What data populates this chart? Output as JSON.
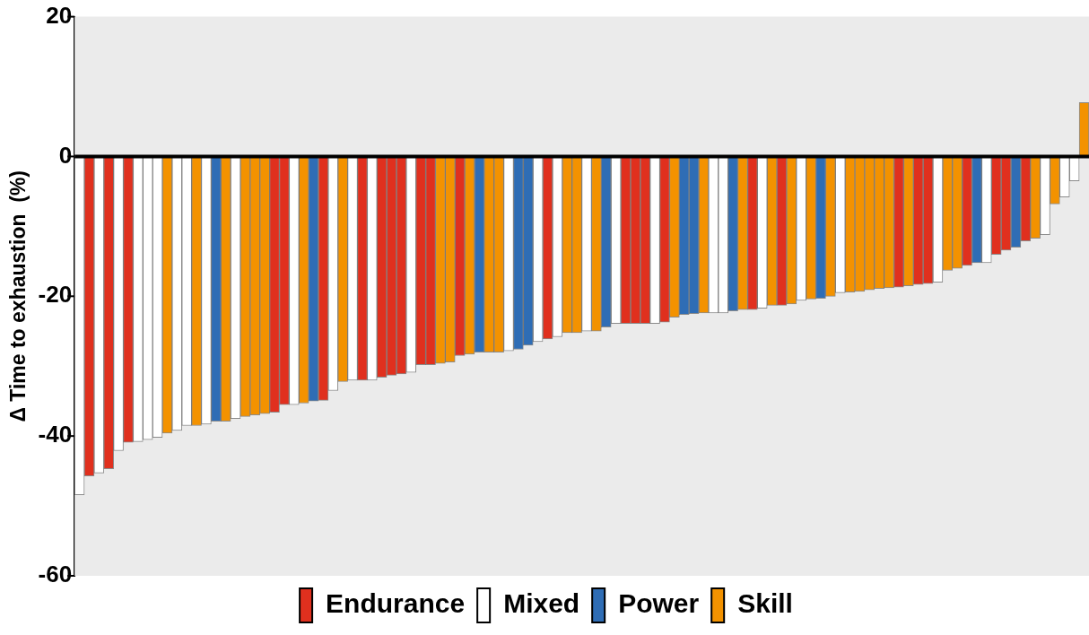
{
  "chart_data": {
    "type": "bar",
    "ylabel": "Δ Time to exhaustion  (%)",
    "categories": [
      null,
      null,
      null,
      null,
      null,
      null,
      null,
      null,
      null,
      null,
      null,
      null,
      null,
      null,
      null,
      null,
      null,
      null,
      null,
      null,
      null,
      null,
      null,
      null,
      null,
      null,
      null,
      null,
      null,
      null,
      null,
      null,
      null,
      null,
      null,
      null,
      null,
      null,
      null,
      null,
      null,
      null,
      null,
      null,
      null,
      null,
      null,
      null,
      null,
      null,
      null,
      null,
      null,
      null,
      null,
      null,
      null,
      null,
      null,
      null,
      null,
      null,
      null,
      null,
      null,
      null,
      null,
      null,
      null,
      null,
      null,
      null,
      null,
      null,
      null,
      null,
      null,
      null,
      null,
      null,
      null,
      null,
      null,
      null,
      null,
      null,
      null,
      null,
      null,
      null,
      null,
      null,
      null,
      null,
      null,
      null,
      null,
      null,
      null,
      null,
      null,
      null,
      null,
      null
    ],
    "series": [
      {
        "name": "Endurance",
        "color": "#e0301e",
        "values": [
          null,
          -45.7,
          null,
          -44.7,
          null,
          -40.9,
          null,
          null,
          null,
          null,
          null,
          null,
          null,
          null,
          null,
          null,
          null,
          null,
          null,
          null,
          -36.6,
          -35.5,
          null,
          null,
          null,
          -34.9,
          null,
          null,
          null,
          -32,
          null,
          -31.6,
          -31.3,
          -31.1,
          null,
          -29.8,
          -29.8,
          null,
          null,
          -28.5,
          null,
          null,
          null,
          null,
          null,
          null,
          null,
          null,
          -26.1,
          null,
          null,
          null,
          null,
          null,
          null,
          null,
          -23.9,
          -23.9,
          -23.9,
          null,
          -23.7,
          null,
          null,
          null,
          null,
          null,
          null,
          null,
          null,
          -21.9,
          null,
          null,
          -21.3,
          null,
          null,
          null,
          null,
          null,
          null,
          null,
          null,
          null,
          null,
          null,
          -18.7,
          null,
          -18.3,
          -18.2,
          null,
          null,
          null,
          -15.6,
          null,
          null,
          -14,
          -13.4,
          null,
          -12.1,
          null,
          null,
          null,
          null,
          null,
          null
        ]
      },
      {
        "name": "Mixed",
        "color": "#ffffff",
        "values": [
          -48.4,
          null,
          -45.3,
          null,
          -42.1,
          null,
          -40.8,
          -40.5,
          -40.2,
          null,
          -39.2,
          -38.5,
          null,
          -38.3,
          null,
          null,
          -37.5,
          null,
          null,
          null,
          null,
          null,
          -35.5,
          null,
          null,
          null,
          -33.5,
          null,
          -32,
          null,
          -32,
          null,
          null,
          null,
          -30.9,
          null,
          null,
          null,
          null,
          null,
          null,
          null,
          null,
          null,
          -27.8,
          null,
          null,
          -26.5,
          null,
          -25.8,
          null,
          null,
          -25,
          null,
          null,
          -23.9,
          null,
          null,
          null,
          -23.9,
          null,
          null,
          null,
          null,
          null,
          -22.4,
          -22.4,
          null,
          null,
          null,
          -21.7,
          null,
          null,
          null,
          -20.6,
          null,
          null,
          null,
          -19.5,
          null,
          null,
          null,
          null,
          null,
          null,
          null,
          null,
          null,
          -18,
          null,
          null,
          null,
          null,
          -15.2,
          null,
          null,
          null,
          null,
          null,
          -11.2,
          null,
          -5.8,
          -3.5,
          null
        ]
      },
      {
        "name": "Power",
        "color": "#2f6db5",
        "values": [
          null,
          null,
          null,
          null,
          null,
          null,
          null,
          null,
          null,
          null,
          null,
          null,
          null,
          null,
          -37.9,
          null,
          null,
          null,
          null,
          null,
          null,
          null,
          null,
          null,
          -35,
          null,
          null,
          null,
          null,
          null,
          null,
          null,
          null,
          null,
          null,
          null,
          null,
          null,
          null,
          null,
          null,
          -28,
          null,
          null,
          null,
          -27.6,
          -27,
          null,
          null,
          null,
          null,
          null,
          null,
          null,
          -24.4,
          null,
          null,
          null,
          null,
          null,
          null,
          null,
          -22.6,
          -22.5,
          null,
          null,
          null,
          -22.1,
          null,
          null,
          null,
          null,
          null,
          null,
          null,
          null,
          -20.3,
          null,
          null,
          null,
          null,
          null,
          null,
          null,
          null,
          null,
          null,
          null,
          null,
          null,
          null,
          null,
          -15.2,
          null,
          null,
          null,
          -13,
          null,
          null,
          null,
          null,
          null,
          null,
          null
        ]
      },
      {
        "name": "Skill",
        "color": "#f39200",
        "values": [
          null,
          null,
          null,
          null,
          null,
          null,
          null,
          null,
          null,
          -39.6,
          null,
          null,
          -38.5,
          null,
          null,
          -37.9,
          null,
          -37.2,
          -37,
          -36.8,
          null,
          null,
          null,
          -35.3,
          null,
          null,
          null,
          -32.2,
          null,
          null,
          null,
          null,
          null,
          null,
          null,
          null,
          null,
          -29.6,
          -29.4,
          null,
          -28.3,
          null,
          -28,
          -28,
          null,
          null,
          null,
          null,
          null,
          null,
          -25.2,
          -25.2,
          null,
          -25,
          null,
          null,
          null,
          null,
          null,
          null,
          null,
          -23,
          null,
          null,
          -22.4,
          null,
          null,
          null,
          -21.9,
          null,
          null,
          -21.3,
          null,
          -21.1,
          null,
          -20.4,
          null,
          -20,
          null,
          -19.4,
          -19.3,
          -19.1,
          -18.9,
          -18.8,
          null,
          -18.5,
          null,
          null,
          null,
          -16.3,
          -16,
          null,
          null,
          null,
          null,
          null,
          null,
          null,
          -11.7,
          null,
          -6.8,
          null,
          null,
          7.7
        ]
      }
    ],
    "ylim": [
      -60,
      20
    ],
    "yticks": [
      -60,
      -40,
      -20,
      0,
      20
    ],
    "grid": false,
    "legend": "bottom",
    "ref_lines": [
      {
        "axis": "y",
        "value": 0,
        "color": "#000000"
      }
    ]
  }
}
